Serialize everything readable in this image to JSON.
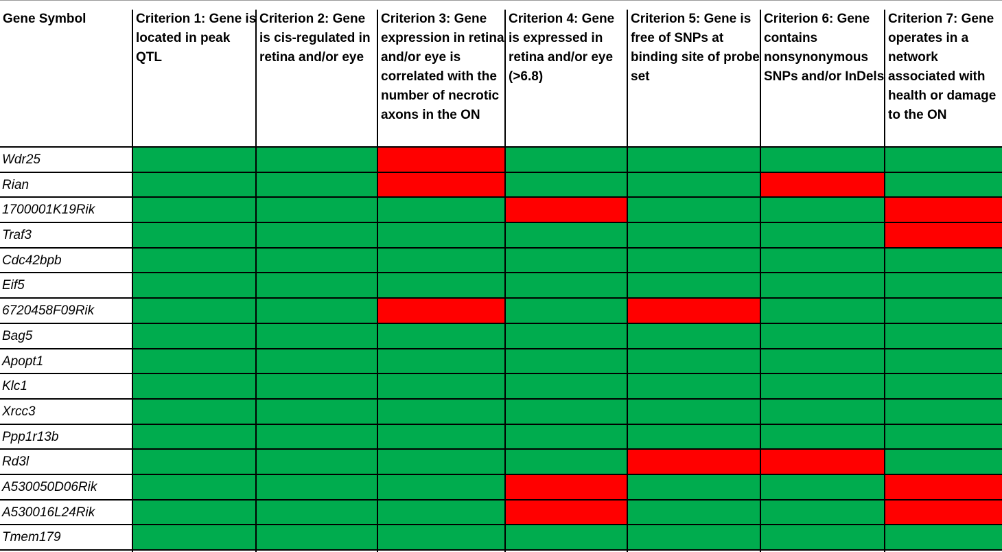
{
  "table": {
    "header_gene": "Gene Symbol",
    "criteria": [
      "Criterion 1: Gene is located in peak QTL",
      "Criterion 2: Gene is cis-regulated in retina and/or eye",
      "Criterion 3: Gene expression in retina and/or eye is correlated with the number of necrotic axons in the ON",
      "Criterion 4: Gene is expressed in retina and/or eye (>6.8)",
      "Criterion 5: Gene is free of SNPs at binding site of probe set",
      "Criterion 6: Gene contains nonsynonymous SNPs and/or InDels",
      "Criterion 7: Gene operates in a network associated with health or damage to the ON"
    ],
    "pass_color": "#00ac4e",
    "fail_color": "#ff0000"
  },
  "chart_data": {
    "type": "table",
    "legend": "none",
    "columns": [
      "Criterion 1",
      "Criterion 2",
      "Criterion 3",
      "Criterion 4",
      "Criterion 5",
      "Criterion 6",
      "Criterion 7"
    ],
    "rows": [
      {
        "gene": "Wdr25",
        "pass": [
          true,
          true,
          false,
          true,
          true,
          true,
          true
        ]
      },
      {
        "gene": "Rian",
        "pass": [
          true,
          true,
          false,
          true,
          true,
          false,
          true
        ]
      },
      {
        "gene": "1700001K19Rik",
        "pass": [
          true,
          true,
          true,
          false,
          true,
          true,
          false
        ]
      },
      {
        "gene": "Traf3",
        "pass": [
          true,
          true,
          true,
          true,
          true,
          true,
          false
        ]
      },
      {
        "gene": "Cdc42bpb",
        "pass": [
          true,
          true,
          true,
          true,
          true,
          true,
          true
        ]
      },
      {
        "gene": "Eif5",
        "pass": [
          true,
          true,
          true,
          true,
          true,
          true,
          true
        ]
      },
      {
        "gene": "6720458F09Rik",
        "pass": [
          true,
          true,
          false,
          true,
          false,
          true,
          true
        ]
      },
      {
        "gene": "Bag5",
        "pass": [
          true,
          true,
          true,
          true,
          true,
          true,
          true
        ]
      },
      {
        "gene": "Apopt1",
        "pass": [
          true,
          true,
          true,
          true,
          true,
          true,
          true
        ]
      },
      {
        "gene": "Klc1",
        "pass": [
          true,
          true,
          true,
          true,
          true,
          true,
          true
        ]
      },
      {
        "gene": "Xrcc3",
        "pass": [
          true,
          true,
          true,
          true,
          true,
          true,
          true
        ]
      },
      {
        "gene": "Ppp1r13b",
        "pass": [
          true,
          true,
          true,
          true,
          true,
          true,
          true
        ]
      },
      {
        "gene": "Rd3l",
        "pass": [
          true,
          true,
          true,
          true,
          false,
          false,
          true
        ]
      },
      {
        "gene": "A530050D06Rik",
        "pass": [
          true,
          true,
          true,
          false,
          true,
          true,
          false
        ]
      },
      {
        "gene": "A530016L24Rik",
        "pass": [
          true,
          true,
          true,
          false,
          true,
          true,
          false
        ]
      },
      {
        "gene": "Tmem179",
        "pass": [
          true,
          true,
          true,
          true,
          true,
          true,
          true
        ]
      }
    ]
  }
}
